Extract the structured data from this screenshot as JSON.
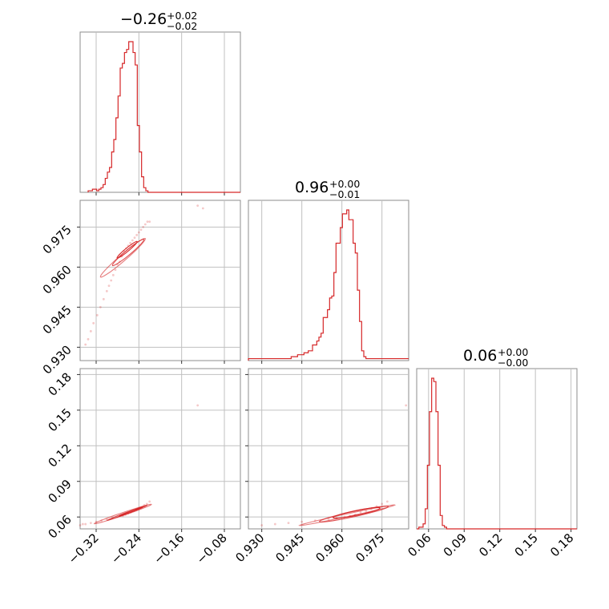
{
  "chart_data": {
    "type": "corner",
    "color": "#d62728",
    "params": [
      {
        "id": "p0",
        "summary": {
          "main": "−0.26",
          "upper": "+0.02",
          "lower": "−0.02"
        },
        "median": -0.26,
        "err_plus": 0.02,
        "err_minus": 0.02,
        "range": [
          -0.35,
          -0.05
        ],
        "ticks": [
          -0.32,
          -0.24,
          -0.16,
          -0.08
        ],
        "tick_labels": [
          "−0.32",
          "−0.24",
          "−0.16",
          "−0.08"
        ],
        "hist": {
          "x_start": -0.335,
          "bin_width": 0.004,
          "counts": [
            1,
            1,
            2,
            2,
            1,
            2,
            3,
            5,
            9,
            13,
            16,
            26,
            34,
            48,
            62,
            80,
            83,
            90,
            92,
            97,
            97,
            90,
            82,
            43,
            26,
            10,
            3,
            1,
            0,
            0,
            0,
            0,
            0,
            0,
            0,
            0,
            0,
            0,
            0,
            0,
            0,
            0,
            0,
            0,
            0,
            0,
            0,
            0,
            0,
            0,
            0,
            0,
            0,
            0,
            0,
            0,
            0,
            0,
            0,
            0,
            0,
            0,
            0,
            0,
            0,
            0,
            0,
            0,
            0,
            0,
            0,
            0,
            0,
            0,
            0
          ]
        }
      },
      {
        "id": "p1",
        "summary": {
          "main": "0.96",
          "upper": "+0.00",
          "lower": "−0.01"
        },
        "median": 0.96,
        "err_plus": 0.0,
        "err_minus": 0.01,
        "range": [
          0.925,
          0.985
        ],
        "ticks": [
          0.93,
          0.945,
          0.96,
          0.975
        ],
        "tick_labels": [
          "0.930",
          "0.945",
          "0.960",
          "0.975"
        ],
        "hist": {
          "x_start": 0.925,
          "bin_width": 0.0008,
          "counts": [
            1,
            1,
            1,
            1,
            1,
            1,
            1,
            1,
            1,
            1,
            1,
            1,
            1,
            1,
            1,
            1,
            1,
            1,
            1,
            1,
            2,
            2,
            2,
            3,
            3,
            3,
            4,
            4,
            5,
            5,
            8,
            8,
            10,
            12,
            14,
            22,
            22,
            26,
            32,
            33,
            45,
            60,
            60,
            68,
            75,
            75,
            77,
            72,
            72,
            60,
            55,
            36,
            20,
            5,
            2,
            1,
            1,
            1,
            1,
            1,
            1,
            1,
            1,
            1,
            1,
            1,
            1,
            1,
            1,
            1,
            1,
            1,
            1,
            1,
            1
          ]
        }
      },
      {
        "id": "p2",
        "summary": {
          "main": "0.06",
          "upper": "+0.00",
          "lower": "−0.00"
        },
        "median": 0.06,
        "err_plus": 0.0,
        "err_minus": 0.0,
        "range": [
          0.05,
          0.185
        ],
        "ticks": [
          0.06,
          0.09,
          0.12,
          0.15,
          0.18
        ],
        "tick_labels": [
          "0.06",
          "0.09",
          "0.12",
          "0.15",
          "0.18"
        ],
        "hist": {
          "x_start": 0.05,
          "bin_width": 0.0018,
          "counts": [
            0,
            1,
            1,
            3,
            12,
            38,
            70,
            90,
            88,
            70,
            38,
            8,
            2,
            1,
            0,
            0,
            0,
            0,
            0,
            0,
            0,
            0,
            0,
            0,
            0,
            0,
            0,
            0,
            0,
            0,
            0,
            0,
            0,
            0,
            0,
            0,
            0,
            0,
            0,
            0,
            0,
            0,
            0,
            0,
            0,
            0,
            0,
            0,
            0,
            0,
            0,
            0,
            0,
            0,
            0,
            0,
            0,
            0,
            0,
            0,
            0,
            0,
            0,
            0,
            0,
            0,
            0,
            0,
            0,
            0,
            0,
            0,
            0,
            0,
            0
          ]
        }
      }
    ],
    "pairs": [
      {
        "x_param": 0,
        "y_param": 1,
        "samples": [
          [
            -0.34,
            0.931
          ],
          [
            -0.335,
            0.933
          ],
          [
            -0.33,
            0.936
          ],
          [
            -0.325,
            0.939
          ],
          [
            -0.318,
            0.942
          ],
          [
            -0.312,
            0.945
          ],
          [
            -0.306,
            0.948
          ],
          [
            -0.3,
            0.951
          ],
          [
            -0.296,
            0.953
          ],
          [
            -0.292,
            0.955
          ],
          [
            -0.288,
            0.957
          ],
          [
            -0.284,
            0.959
          ],
          [
            -0.28,
            0.961
          ],
          [
            -0.276,
            0.962
          ],
          [
            -0.272,
            0.964
          ],
          [
            -0.268,
            0.966
          ],
          [
            -0.264,
            0.967
          ],
          [
            -0.26,
            0.968
          ],
          [
            -0.256,
            0.969
          ],
          [
            -0.252,
            0.97
          ],
          [
            -0.248,
            0.971
          ],
          [
            -0.244,
            0.972
          ],
          [
            -0.24,
            0.973
          ],
          [
            -0.236,
            0.974
          ],
          [
            -0.232,
            0.975
          ],
          [
            -0.228,
            0.976
          ],
          [
            -0.224,
            0.977
          ],
          [
            -0.22,
            0.977
          ],
          [
            -0.13,
            0.983
          ],
          [
            -0.12,
            0.982
          ]
        ],
        "contours": [
          {
            "cx": -0.262,
            "cy": 0.9665,
            "a": 0.022,
            "b": 0.0012,
            "slope_deg": 43
          },
          {
            "cx": -0.26,
            "cy": 0.9655,
            "a": 0.035,
            "b": 0.0018,
            "slope_deg": 43
          },
          {
            "cx": -0.27,
            "cy": 0.9635,
            "a": 0.052,
            "b": 0.0022,
            "slope_deg": 43
          }
        ]
      },
      {
        "x_param": 0,
        "y_param": 2,
        "samples": [
          [
            -0.35,
            0.053
          ],
          [
            -0.345,
            0.054
          ],
          [
            -0.34,
            0.054
          ],
          [
            -0.33,
            0.055
          ],
          [
            -0.32,
            0.056
          ],
          [
            -0.31,
            0.057
          ],
          [
            -0.3,
            0.058
          ],
          [
            -0.29,
            0.059
          ],
          [
            -0.28,
            0.06
          ],
          [
            -0.27,
            0.061
          ],
          [
            -0.265,
            0.062
          ],
          [
            -0.26,
            0.063
          ],
          [
            -0.255,
            0.064
          ],
          [
            -0.25,
            0.065
          ],
          [
            -0.245,
            0.066
          ],
          [
            -0.24,
            0.067
          ],
          [
            -0.235,
            0.068
          ],
          [
            -0.23,
            0.07
          ],
          [
            -0.225,
            0.071
          ],
          [
            -0.22,
            0.073
          ],
          [
            -0.13,
            0.154
          ]
        ],
        "contours": [
          {
            "cx": -0.255,
            "cy": 0.0645,
            "a": 0.022,
            "b": 0.0018,
            "slope_deg": 20
          },
          {
            "cx": -0.262,
            "cy": 0.0635,
            "a": 0.038,
            "b": 0.0025,
            "slope_deg": 20
          },
          {
            "cx": -0.27,
            "cy": 0.0625,
            "a": 0.055,
            "b": 0.0032,
            "slope_deg": 18
          }
        ]
      },
      {
        "x_param": 1,
        "y_param": 2,
        "samples": [
          [
            0.93,
            0.053
          ],
          [
            0.935,
            0.054
          ],
          [
            0.94,
            0.055
          ],
          [
            0.945,
            0.056
          ],
          [
            0.95,
            0.057
          ],
          [
            0.955,
            0.058
          ],
          [
            0.958,
            0.059
          ],
          [
            0.961,
            0.06
          ],
          [
            0.963,
            0.061
          ],
          [
            0.965,
            0.062
          ],
          [
            0.967,
            0.064
          ],
          [
            0.969,
            0.065
          ],
          [
            0.971,
            0.067
          ],
          [
            0.973,
            0.069
          ],
          [
            0.975,
            0.071
          ],
          [
            0.977,
            0.073
          ],
          [
            0.984,
            0.154
          ]
        ],
        "contours": [
          {
            "cx": 0.9655,
            "cy": 0.0635,
            "a": 0.006,
            "b": 0.0018,
            "slope_deg": 18
          },
          {
            "cx": 0.9645,
            "cy": 0.0625,
            "a": 0.01,
            "b": 0.0026,
            "slope_deg": 16
          },
          {
            "cx": 0.962,
            "cy": 0.0615,
            "a": 0.016,
            "b": 0.0032,
            "slope_deg": 13
          }
        ]
      }
    ]
  }
}
